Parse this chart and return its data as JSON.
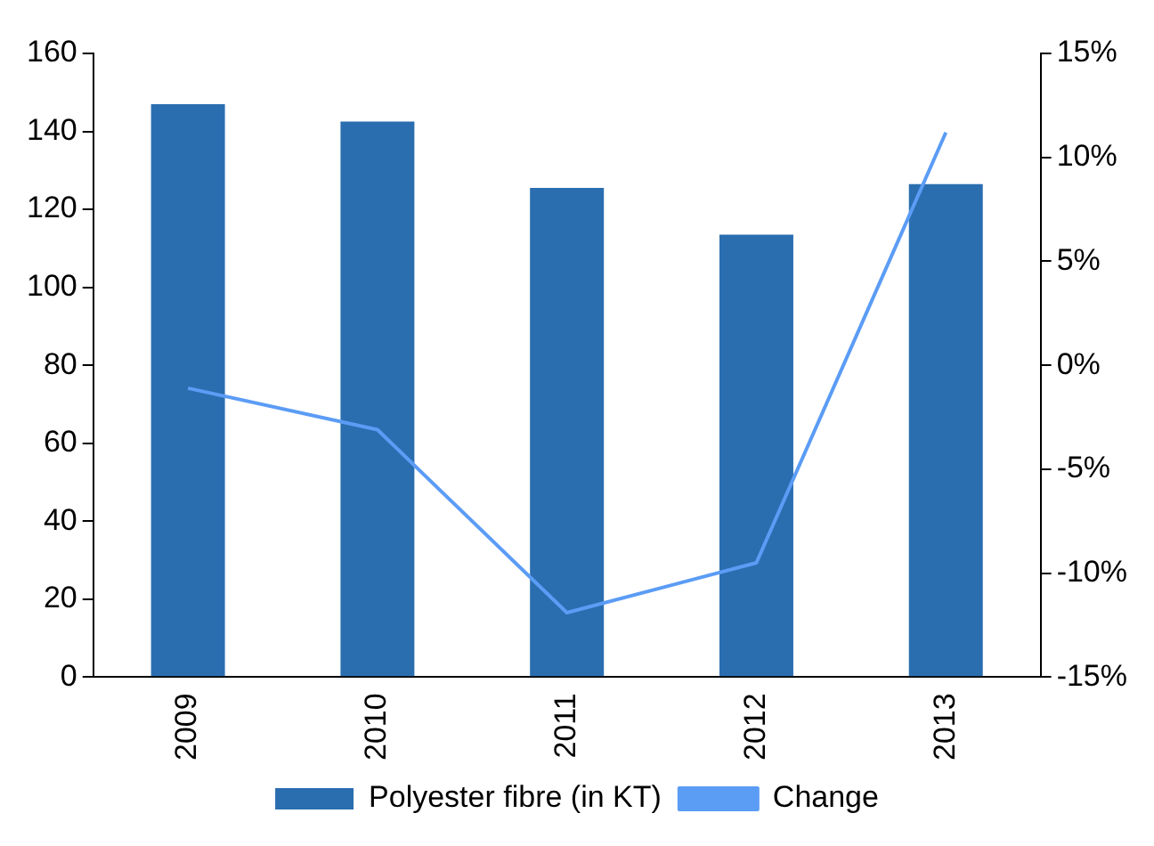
{
  "chart_data": {
    "type": "bar",
    "categories": [
      "2009",
      "2010",
      "2011",
      "2012",
      "2013"
    ],
    "series": [
      {
        "name": "Polyester fibre (in KT)",
        "color": "#2a6eb0",
        "values": [
          147,
          142.5,
          125.5,
          113.5,
          126.5
        ]
      },
      {
        "name": "Change",
        "type": "line",
        "axis": "y2",
        "color": "#5b9cf5",
        "values": [
          -1.1,
          -3.1,
          -11.9,
          -9.5,
          11.2
        ]
      }
    ],
    "ylim": [
      0,
      160
    ],
    "yticks": [
      0,
      20,
      40,
      60,
      80,
      100,
      120,
      140,
      160
    ],
    "y2lim": [
      -15,
      15
    ],
    "y2ticks": [
      {
        "value": -15,
        "label": "-15%"
      },
      {
        "value": -10,
        "label": "-10%"
      },
      {
        "value": -5,
        "label": "-5%"
      },
      {
        "value": 0,
        "label": "0%"
      },
      {
        "value": 5,
        "label": "5%"
      },
      {
        "value": 10,
        "label": "10%"
      },
      {
        "value": 15,
        "label": "15%"
      }
    ],
    "grid": false,
    "legend": "bottom",
    "marker": "none"
  }
}
